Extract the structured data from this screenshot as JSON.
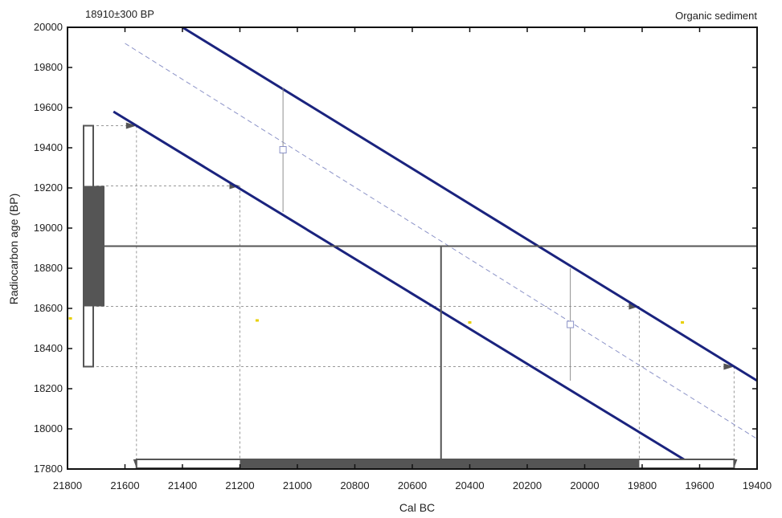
{
  "chart_data": {
    "type": "line",
    "title": "18910±300 BP",
    "subtitle": "Organic sediment",
    "xlabel": "Cal BC",
    "ylabel": "Radiocarbon age (BP)",
    "xlim": [
      21800,
      19400
    ],
    "ylim": [
      17800,
      20000
    ],
    "x_reversed": true,
    "x_ticks": [
      21800,
      21600,
      21400,
      21200,
      21000,
      20800,
      20600,
      20400,
      20200,
      20000,
      19800,
      19600,
      19400
    ],
    "y_ticks": [
      17800,
      18000,
      18200,
      18400,
      18600,
      18800,
      19000,
      19200,
      19400,
      19600,
      19800,
      20000
    ],
    "calibration_curve": {
      "center": [
        [
          21600,
          19920
        ],
        [
          19400,
          17950
        ]
      ],
      "upper": [
        [
          21400,
          20000
        ],
        [
          19400,
          18240
        ]
      ],
      "lower": [
        [
          21640,
          19580
        ],
        [
          19600,
          17800
        ]
      ]
    },
    "error_bars": [
      {
        "x": 21050,
        "y": 19390,
        "low": 19080,
        "high": 19700
      },
      {
        "x": 20050,
        "y": 18520,
        "low": 18240,
        "high": 18800
      }
    ],
    "measurement": {
      "mean": 18910,
      "sigma": 300
    },
    "one_sigma_y": [
      18610,
      19210
    ],
    "two_sigma_y": [
      18310,
      19510
    ],
    "one_sigma_cal": [
      21200,
      19810
    ],
    "two_sigma_cal": [
      21560,
      19480
    ],
    "median_cal": 20500,
    "projections": [
      {
        "y": 19510,
        "x": 21560
      },
      {
        "y": 19210,
        "x": 21200
      },
      {
        "y": 18610,
        "x": 19810
      },
      {
        "y": 18310,
        "x": 19480
      }
    ],
    "yellow_marks": [
      {
        "x": 21790,
        "y": 18550
      },
      {
        "x": 21140,
        "y": 18540
      },
      {
        "x": 20400,
        "y": 18530
      },
      {
        "x": 19660,
        "y": 18530
      }
    ],
    "colors": {
      "curve": "#1a237e",
      "curve_center": "#8c93c8",
      "measurement": "#555555",
      "guide": "#999999",
      "sigma_fill": "#555555",
      "yellow": "#e8d000"
    }
  }
}
